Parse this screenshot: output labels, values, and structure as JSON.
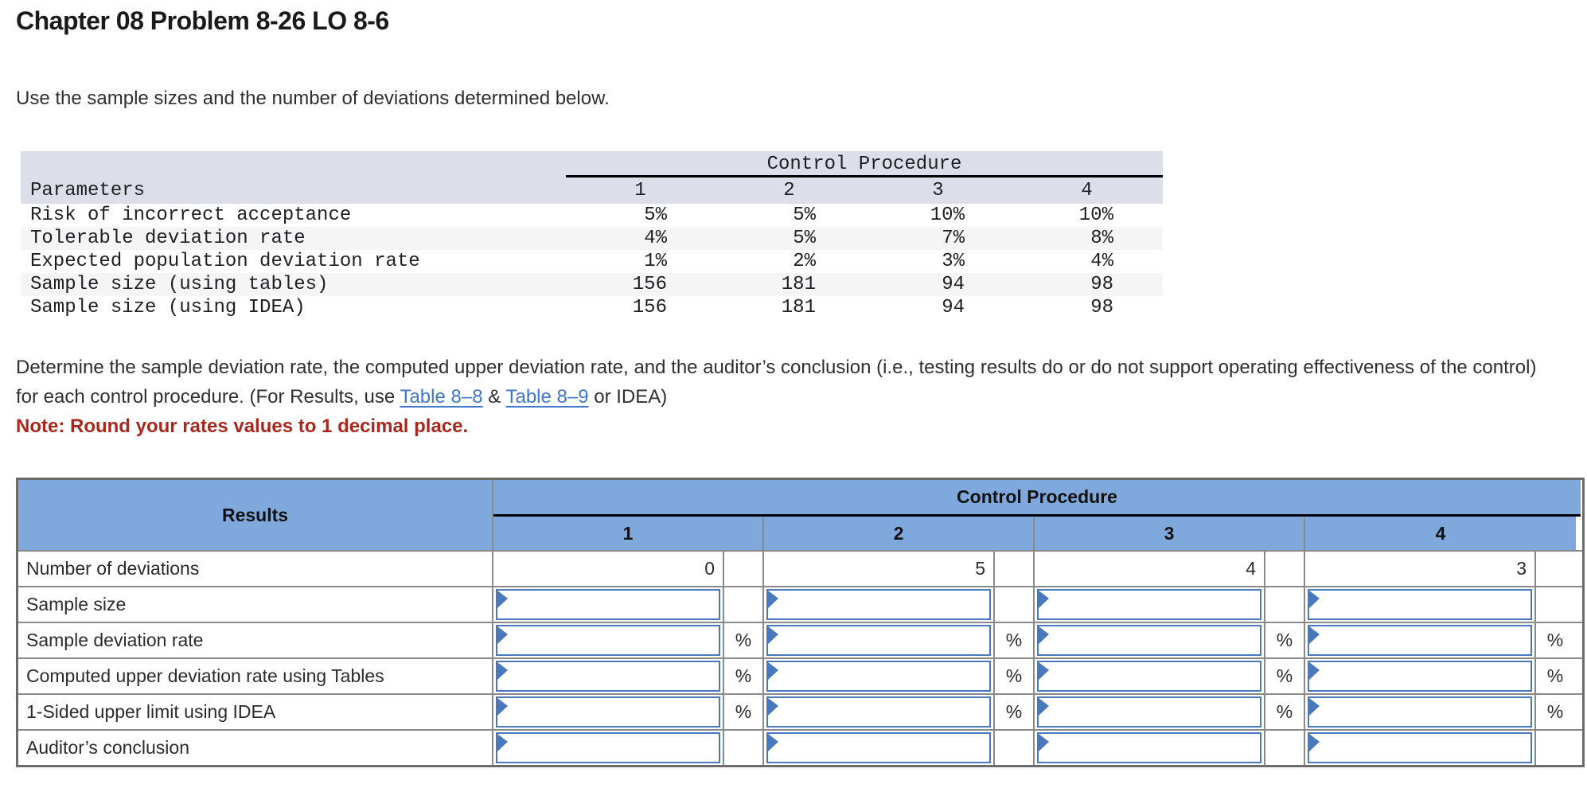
{
  "page": {
    "title": "Chapter 08 Problem 8-26 LO 8-6",
    "intro": "Use the sample sizes and the number of deviations determined below.",
    "instruction_part1": "Determine the sample deviation rate, the computed upper deviation rate, and the auditor’s conclusion (i.e., testing results do or do not support operating effectiveness of the control) for each control procedure. (For Results, use ",
    "link1": "Table 8–8",
    "between_links": " & ",
    "link2": "Table 8–9",
    "instruction_part2": " or IDEA)",
    "note": "Note: Round your rates values to 1 decimal place."
  },
  "colors": {
    "results_header_blue": "#7fa9dc",
    "input_border_blue": "#4a78bd",
    "grid_gray": "#8a8a8a",
    "params_header_bg": "#dcdfe9",
    "params_alt_row_bg": "#f5f5f6",
    "link_blue": "#4077c8",
    "note_red": "#a9281e"
  },
  "params_table": {
    "group_header": "Control Procedure",
    "corner_header": "Parameters",
    "columns": [
      "1",
      "2",
      "3",
      "4"
    ],
    "rows": [
      {
        "label": "Risk of incorrect acceptance",
        "values": [
          "5%",
          "5%",
          "10%",
          "10%"
        ]
      },
      {
        "label": "Tolerable deviation rate",
        "values": [
          "4%",
          "5%",
          "7%",
          "8%"
        ]
      },
      {
        "label": "Expected population deviation rate",
        "values": [
          "1%",
          "2%",
          "3%",
          "4%"
        ]
      },
      {
        "label": "Sample size (using tables)",
        "values": [
          "156",
          "181",
          "94",
          "98"
        ]
      },
      {
        "label": "Sample size (using IDEA)",
        "values": [
          "156",
          "181",
          "94",
          "98"
        ]
      }
    ]
  },
  "results_table": {
    "corner_header": "Results",
    "group_header": "Control Procedure",
    "columns": [
      "1",
      "2",
      "3",
      "4"
    ],
    "rows": [
      {
        "label": "Number of deviations",
        "type": "static",
        "suffix": "",
        "values": [
          "0",
          "5",
          "4",
          "3"
        ]
      },
      {
        "label": "Sample size",
        "type": "input",
        "suffix": "",
        "values": [
          "",
          "",
          "",
          ""
        ]
      },
      {
        "label": "Sample deviation rate",
        "type": "input",
        "suffix": "%",
        "values": [
          "",
          "",
          "",
          ""
        ]
      },
      {
        "label": "Computed upper deviation rate using Tables",
        "type": "input",
        "suffix": "%",
        "values": [
          "",
          "",
          "",
          ""
        ]
      },
      {
        "label": "1-Sided upper limit using IDEA",
        "type": "input",
        "suffix": "%",
        "values": [
          "",
          "",
          "",
          ""
        ]
      },
      {
        "label": "Auditor’s conclusion",
        "type": "input",
        "suffix": "",
        "values": [
          "",
          "",
          "",
          ""
        ]
      }
    ]
  }
}
